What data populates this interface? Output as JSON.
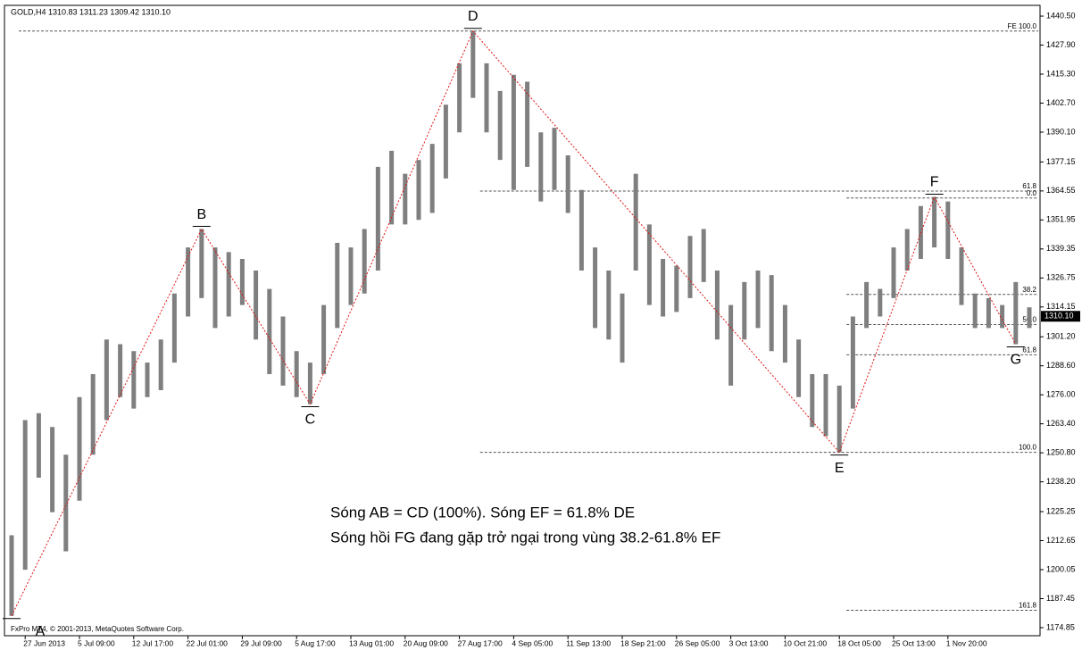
{
  "chart_data": {
    "type": "ohlc",
    "title": "GOLD,H4  1310.83 1311.23 1309.42 1310.10",
    "footer": "FxPro MT4, © 2001-2013, MetaQuotes Software Corp.",
    "annotations": [
      "Sóng AB = CD (100%). Sóng EF = 61.8% DE",
      "Sóng hồi FG đang gặp trở ngại trong vùng 38.2-61.8% EF"
    ],
    "color": "#7f7f7f",
    "wave_color": "#e01010",
    "categories": [
      null,
      "27 Jun 2013",
      null,
      null,
      null,
      "5 Jul 09:00",
      null,
      null,
      null,
      "12 Jul 17:00",
      null,
      null,
      null,
      "22 Jul 01:00",
      null,
      null,
      null,
      "29 Jul 09:00",
      null,
      null,
      null,
      "5 Aug 17:00",
      null,
      null,
      null,
      "13 Aug 01:00",
      null,
      null,
      null,
      "20 Aug 09:00",
      null,
      null,
      null,
      "27 Aug 17:00",
      null,
      null,
      null,
      "4 Sep 05:00",
      null,
      null,
      null,
      "11 Sep 13:00",
      null,
      null,
      null,
      "18 Sep 21:00",
      null,
      null,
      null,
      "26 Sep 05:00",
      null,
      null,
      null,
      "3 Oct 13:00",
      null,
      null,
      null,
      "10 Oct 21:00",
      null,
      null,
      null,
      "18 Oct 05:00",
      null,
      null,
      null,
      "25 Oct 13:00",
      null,
      null,
      null,
      "1 Nov 20:00",
      null,
      null,
      null,
      null,
      null,
      null
    ],
    "high": [
      1215,
      1265,
      1268,
      1262,
      1250,
      1275,
      1285,
      1300,
      1298,
      1295,
      1290,
      1300,
      1320,
      1340,
      1348,
      1340,
      1338,
      1335,
      1330,
      1322,
      1310,
      1295,
      1290,
      1315,
      1342,
      1340,
      1348,
      1375,
      1382,
      1372,
      1378,
      1385,
      1402,
      1420,
      1434,
      1420,
      1408,
      1415,
      1412,
      1390,
      1392,
      1380,
      1365,
      1340,
      1330,
      1320,
      1372,
      1350,
      1335,
      1332,
      1345,
      1348,
      1330,
      1315,
      1325,
      1330,
      1328,
      1315,
      1300,
      1285,
      1285,
      1280,
      1310,
      1325,
      1322,
      1340,
      1348,
      1358,
      1362,
      1360,
      1340,
      1320,
      1318,
      1315,
      1325,
      1314
    ],
    "low": [
      1180,
      1200,
      1240,
      1225,
      1208,
      1230,
      1250,
      1265,
      1275,
      1270,
      1275,
      1278,
      1290,
      1310,
      1318,
      1305,
      1310,
      1315,
      1300,
      1285,
      1280,
      1275,
      1272,
      1285,
      1305,
      1315,
      1320,
      1330,
      1350,
      1350,
      1352,
      1355,
      1370,
      1390,
      1405,
      1390,
      1378,
      1365,
      1375,
      1360,
      1365,
      1355,
      1330,
      1305,
      1300,
      1290,
      1330,
      1315,
      1310,
      1312,
      1318,
      1325,
      1300,
      1280,
      1300,
      1305,
      1295,
      1290,
      1275,
      1262,
      1258,
      1251,
      1270,
      1305,
      1310,
      1318,
      1330,
      1335,
      1340,
      1335,
      1315,
      1305,
      1305,
      1305,
      1298,
      1305
    ],
    "last": {
      "value": 1310.1,
      "label": "1310.10"
    },
    "waves": [
      {
        "label": "A",
        "index": 0,
        "value": 1180
      },
      {
        "label": "B",
        "index": 14,
        "value": 1348
      },
      {
        "label": "C",
        "index": 22,
        "value": 1272
      },
      {
        "label": "D",
        "index": 34,
        "value": 1434
      },
      {
        "label": "E",
        "index": 61,
        "value": 1251
      },
      {
        "label": "F",
        "index": 68,
        "value": 1362
      },
      {
        "label": "G",
        "index": 74,
        "value": 1298
      }
    ],
    "levels": [
      {
        "label": "FE 100.0",
        "value": 1434,
        "start": 0
      },
      {
        "label": "61.8",
        "value": 1364.5,
        "start": 34
      },
      {
        "label": "100.0",
        "value": 1251,
        "start": 34
      },
      {
        "label": "0.0",
        "value": 1361.5,
        "start": 61
      },
      {
        "label": "38.2",
        "value": 1319.6,
        "start": 61
      },
      {
        "label": "50.0",
        "value": 1306.5,
        "start": 61
      },
      {
        "label": "61.8",
        "value": 1293.4,
        "start": 61
      },
      {
        "label": "161.8",
        "value": 1182.4,
        "start": 61
      }
    ],
    "ylim": [
      1171.35,
      1445.17
    ],
    "yticks": [
      {
        "value": 1440.5,
        "label": "1440.50"
      },
      {
        "value": 1427.9,
        "label": "1427.90"
      },
      {
        "value": 1415.3,
        "label": "1415.30"
      },
      {
        "value": 1402.7,
        "label": "1402.70"
      },
      {
        "value": 1390.1,
        "label": "1390.10"
      },
      1377.15,
      1364.55,
      1351.95,
      1339.35,
      1326.75,
      1314.15,
      {
        "value": 1301.2,
        "label": "1301.20"
      },
      {
        "value": 1288.6,
        "label": "1288.60"
      },
      {
        "value": 1276,
        "label": "1276.00"
      },
      {
        "value": 1263.4,
        "label": "1263.40"
      },
      {
        "value": 1250.8,
        "label": "1250.80"
      },
      {
        "value": 1238.2,
        "label": "1238.20"
      },
      1225.25,
      1212.65,
      1200.05,
      1187.45,
      1174.85
    ]
  }
}
